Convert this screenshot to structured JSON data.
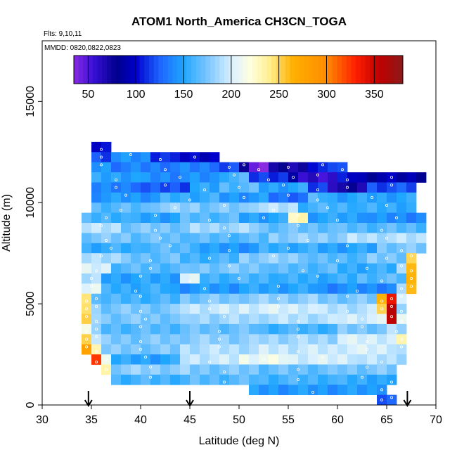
{
  "chart_data": {
    "type": "heatmap",
    "title": "ATOM1 North_America CH3CN_TOGA",
    "flights_note": "Flts: 9,10,11",
    "dates_note": "MMDD: 0820,0822,0823",
    "xlabel": "Latitude (deg N)",
    "ylabel": "Altitude (m)",
    "xlim": [
      30,
      70
    ],
    "ylim": [
      0,
      18000
    ],
    "xticks": [
      30,
      35,
      40,
      45,
      50,
      55,
      60,
      65,
      70
    ],
    "yticks": [
      0,
      5000,
      10000,
      15000
    ],
    "colorbar": {
      "range": [
        35,
        380
      ],
      "ticks": [
        50,
        100,
        150,
        200,
        250,
        300,
        350
      ],
      "stops": [
        [
          35,
          "#8a2be2"
        ],
        [
          55,
          "#3a10d8"
        ],
        [
          80,
          "#00008b"
        ],
        [
          100,
          "#0000cd"
        ],
        [
          125,
          "#1e64ff"
        ],
        [
          150,
          "#1fa6ff"
        ],
        [
          175,
          "#7ac6ff"
        ],
        [
          200,
          "#d8f0ff"
        ],
        [
          220,
          "#ffffe0"
        ],
        [
          240,
          "#ffef90"
        ],
        [
          265,
          "#ffb000"
        ],
        [
          300,
          "#ff8c00"
        ],
        [
          330,
          "#ff2000"
        ],
        [
          355,
          "#c00000"
        ],
        [
          380,
          "#8b1a1a"
        ]
      ]
    },
    "arrows_at_latitude": [
      34.7,
      45,
      67.1
    ],
    "rows": [
      {
        "alt": [
          12500,
          13000
        ],
        "segments": [
          [
            35,
            37,
            105
          ]
        ]
      },
      {
        "alt": [
          12000,
          12500
        ],
        "segments": [
          [
            35,
            37,
            120
          ],
          [
            37,
            41,
            140
          ],
          [
            41,
            43,
            115
          ],
          [
            43,
            48,
            100
          ]
        ]
      },
      {
        "alt": [
          11500,
          12000
        ],
        "segments": [
          [
            35,
            37,
            145
          ],
          [
            37,
            48,
            135
          ],
          [
            48,
            50,
            115
          ],
          [
            50,
            51,
            80
          ],
          [
            51,
            53,
            40
          ],
          [
            53,
            57,
            70
          ],
          [
            57,
            60,
            110
          ],
          [
            60,
            61,
            125
          ]
        ]
      },
      {
        "alt": [
          11000,
          11500
        ],
        "segments": [
          [
            35,
            40,
            150
          ],
          [
            40,
            48,
            140
          ],
          [
            48,
            51,
            160
          ],
          [
            51,
            55,
            115
          ],
          [
            55,
            56,
            80
          ],
          [
            56,
            60,
            60
          ],
          [
            60,
            62,
            100
          ],
          [
            62,
            69,
            90
          ]
        ]
      },
      {
        "alt": [
          10500,
          11000
        ],
        "segments": [
          [
            35,
            40,
            135
          ],
          [
            40,
            45,
            120
          ],
          [
            45,
            48,
            150
          ],
          [
            48,
            52,
            165
          ],
          [
            52,
            57,
            150
          ],
          [
            57,
            59,
            115
          ],
          [
            59,
            63,
            70
          ],
          [
            63,
            68,
            120
          ]
        ]
      },
      {
        "alt": [
          10000,
          10500
        ],
        "segments": [
          [
            35,
            42,
            145
          ],
          [
            42,
            48,
            155
          ],
          [
            48,
            53,
            145
          ],
          [
            53,
            57,
            130
          ],
          [
            57,
            59,
            160
          ],
          [
            59,
            68,
            150
          ]
        ]
      },
      {
        "alt": [
          9500,
          10000
        ],
        "segments": [
          [
            35,
            41,
            165
          ],
          [
            41,
            46,
            180
          ],
          [
            46,
            51,
            175
          ],
          [
            51,
            56,
            190
          ],
          [
            56,
            62,
            160
          ],
          [
            62,
            68,
            155
          ]
        ]
      },
      {
        "alt": [
          9000,
          9500
        ],
        "segments": [
          [
            34,
            39,
            160
          ],
          [
            39,
            44,
            150
          ],
          [
            44,
            50,
            165
          ],
          [
            50,
            55,
            150
          ],
          [
            55,
            57,
            230
          ],
          [
            57,
            63,
            150
          ],
          [
            63,
            69,
            140
          ]
        ]
      },
      {
        "alt": [
          8500,
          9000
        ],
        "segments": [
          [
            34,
            38,
            190
          ],
          [
            38,
            45,
            175
          ],
          [
            45,
            52,
            185
          ],
          [
            52,
            60,
            170
          ],
          [
            60,
            69,
            165
          ]
        ]
      },
      {
        "alt": [
          8000,
          8500
        ],
        "segments": [
          [
            34,
            39,
            175
          ],
          [
            39,
            45,
            170
          ],
          [
            45,
            53,
            165
          ],
          [
            53,
            61,
            180
          ],
          [
            61,
            69,
            190
          ]
        ]
      },
      {
        "alt": [
          7500,
          8000
        ],
        "segments": [
          [
            34,
            40,
            155
          ],
          [
            40,
            46,
            165
          ],
          [
            46,
            52,
            145
          ],
          [
            52,
            58,
            155
          ],
          [
            58,
            64,
            150
          ],
          [
            64,
            69,
            175
          ]
        ]
      },
      {
        "alt": [
          7000,
          7500
        ],
        "segments": [
          [
            34,
            38,
            190
          ],
          [
            38,
            44,
            170
          ],
          [
            44,
            50,
            160
          ],
          [
            50,
            57,
            180
          ],
          [
            57,
            63,
            165
          ],
          [
            63,
            67,
            175
          ],
          [
            67,
            68,
            250
          ]
        ]
      },
      {
        "alt": [
          6500,
          7000
        ],
        "segments": [
          [
            34,
            37,
            200
          ],
          [
            37,
            45,
            165
          ],
          [
            45,
            53,
            175
          ],
          [
            53,
            60,
            165
          ],
          [
            60,
            66,
            155
          ],
          [
            66,
            67,
            185
          ],
          [
            67,
            68,
            270
          ]
        ]
      },
      {
        "alt": [
          6000,
          6500
        ],
        "segments": [
          [
            34,
            36,
            185
          ],
          [
            36,
            44,
            150
          ],
          [
            44,
            46,
            200
          ],
          [
            46,
            54,
            160
          ],
          [
            54,
            62,
            155
          ],
          [
            62,
            67,
            165
          ],
          [
            67,
            68,
            260
          ]
        ]
      },
      {
        "alt": [
          5500,
          6000
        ],
        "segments": [
          [
            34,
            36,
            210
          ],
          [
            36,
            43,
            155
          ],
          [
            43,
            50,
            145
          ],
          [
            50,
            58,
            150
          ],
          [
            58,
            66,
            140
          ],
          [
            66,
            67,
            180
          ],
          [
            67,
            68,
            265
          ]
        ]
      },
      {
        "alt": [
          5000,
          5500
        ],
        "segments": [
          [
            34,
            35,
            240
          ],
          [
            35,
            36,
            175
          ],
          [
            36,
            44,
            160
          ],
          [
            44,
            50,
            175
          ],
          [
            50,
            58,
            180
          ],
          [
            58,
            64,
            175
          ],
          [
            64,
            65,
            260
          ],
          [
            65,
            66,
            345
          ],
          [
            66,
            67,
            200
          ]
        ]
      },
      {
        "alt": [
          4500,
          5000
        ],
        "segments": [
          [
            34,
            35,
            250
          ],
          [
            35,
            36,
            180
          ],
          [
            36,
            44,
            175
          ],
          [
            44,
            50,
            195
          ],
          [
            50,
            58,
            200
          ],
          [
            58,
            64,
            190
          ],
          [
            64,
            65,
            255
          ],
          [
            65,
            66,
            355
          ],
          [
            66,
            67,
            190
          ]
        ]
      },
      {
        "alt": [
          4000,
          4500
        ],
        "segments": [
          [
            34,
            35,
            245
          ],
          [
            35,
            36,
            190
          ],
          [
            36,
            45,
            175
          ],
          [
            45,
            52,
            185
          ],
          [
            52,
            60,
            190
          ],
          [
            60,
            65,
            200
          ],
          [
            65,
            66,
            360
          ],
          [
            66,
            67,
            205
          ]
        ]
      },
      {
        "alt": [
          3500,
          4000
        ],
        "segments": [
          [
            34,
            35,
            215
          ],
          [
            35,
            36,
            175
          ],
          [
            36,
            44,
            165
          ],
          [
            44,
            52,
            170
          ],
          [
            52,
            60,
            160
          ],
          [
            60,
            65,
            175
          ],
          [
            65,
            67,
            185
          ]
        ]
      },
      {
        "alt": [
          3000,
          3500
        ],
        "segments": [
          [
            34,
            35,
            260
          ],
          [
            35,
            36,
            195
          ],
          [
            36,
            44,
            175
          ],
          [
            44,
            52,
            180
          ],
          [
            52,
            60,
            185
          ],
          [
            60,
            66,
            200
          ],
          [
            66,
            67,
            225
          ]
        ]
      },
      {
        "alt": [
          2500,
          3000
        ],
        "segments": [
          [
            34,
            35,
            275
          ],
          [
            35,
            36,
            240
          ],
          [
            36,
            44,
            175
          ],
          [
            44,
            52,
            190
          ],
          [
            52,
            60,
            195
          ],
          [
            60,
            66,
            200
          ],
          [
            66,
            67,
            190
          ]
        ]
      },
      {
        "alt": [
          2000,
          2500
        ],
        "segments": [
          [
            35,
            36,
            320
          ],
          [
            36,
            37,
            220
          ],
          [
            37,
            44,
            150
          ],
          [
            44,
            50,
            195
          ],
          [
            50,
            55,
            210
          ],
          [
            55,
            62,
            200
          ],
          [
            62,
            67,
            190
          ]
        ]
      },
      {
        "alt": [
          1500,
          2000
        ],
        "segments": [
          [
            36,
            37,
            230
          ],
          [
            37,
            45,
            180
          ],
          [
            45,
            52,
            175
          ],
          [
            52,
            60,
            170
          ],
          [
            60,
            66,
            175
          ]
        ]
      },
      {
        "alt": [
          1000,
          1500
        ],
        "segments": [
          [
            37,
            45,
            160
          ],
          [
            45,
            52,
            165
          ],
          [
            52,
            60,
            160
          ],
          [
            60,
            65,
            155
          ],
          [
            65,
            66,
            140
          ]
        ]
      },
      {
        "alt": [
          500,
          1000
        ],
        "segments": [
          [
            51,
            64,
            145
          ],
          [
            64,
            65,
            150
          ]
        ]
      },
      {
        "alt": [
          0,
          500
        ],
        "segments": [
          [
            64,
            65,
            115
          ],
          [
            65,
            66,
            135
          ]
        ]
      }
    ]
  }
}
